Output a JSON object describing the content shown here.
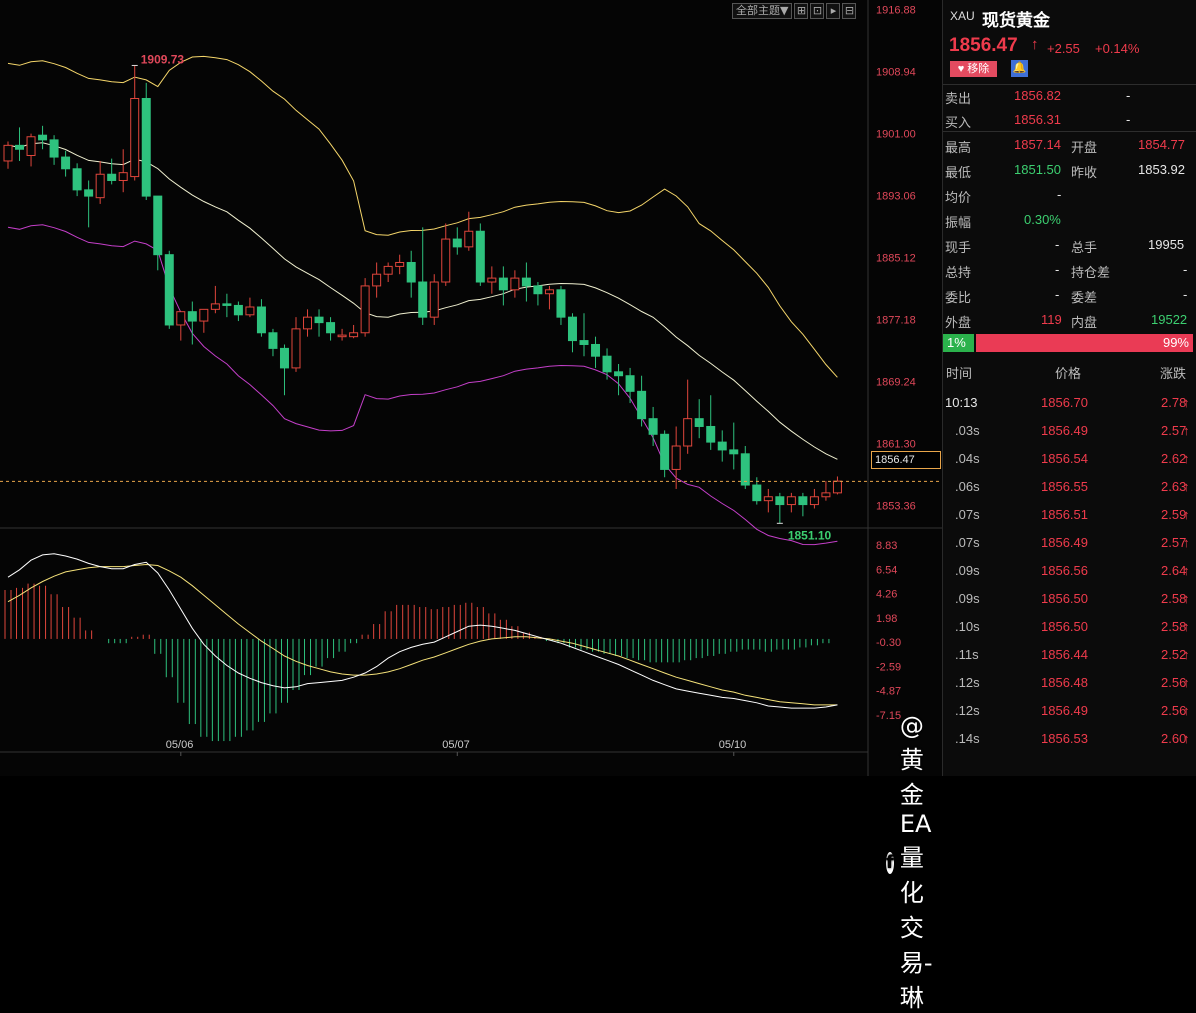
{
  "toolbar": {
    "theme_label": "全部主题▼",
    "icons": [
      "expand-icon",
      "indicator-icon",
      "play-icon",
      "settings-icon"
    ]
  },
  "colors": {
    "up": "#ef3b4c",
    "down": "#3ccf70",
    "bull_candle": "#e0463c",
    "bear_candle": "#2ec27e",
    "boll_mid": "#f0f0d0",
    "boll_upper": "#f5d66a",
    "boll_lower": "#c43fc9",
    "macd_dif": "#ffffff",
    "macd_dea": "#f5e27a"
  },
  "chart": {
    "price_axis": [
      "1916.88",
      "1908.94",
      "1901.00",
      "1893.06",
      "1885.12",
      "1877.18",
      "1869.24",
      "1861.30",
      "1853.36"
    ],
    "macd_axis": [
      "8.83",
      "6.54",
      "4.26",
      "1.98",
      "-0.30",
      "-2.59",
      "-4.87",
      "-7.15"
    ],
    "date_labels": [
      "05/06",
      "05/07",
      "05/10"
    ],
    "high_label": "1909.73",
    "low_label": "1851.10",
    "current_price_tag": "1856.47"
  },
  "chart_data": {
    "type": "candlestick",
    "ylim": [
      1850.5,
      1917.6
    ],
    "candles": [
      [
        1897.5,
        1900.0,
        1899.5,
        1896.5
      ],
      [
        1899.5,
        1901.8,
        1899.0,
        1897.5
      ],
      [
        1898.2,
        1901.0,
        1900.6,
        1896.8
      ],
      [
        1900.8,
        1902.0,
        1900.2,
        1899.0
      ],
      [
        1900.2,
        1900.8,
        1898.0,
        1897.0
      ],
      [
        1898.0,
        1898.8,
        1896.5,
        1895.5
      ],
      [
        1896.5,
        1897.2,
        1893.8,
        1893.0
      ],
      [
        1893.8,
        1895.0,
        1893.0,
        1889.0
      ],
      [
        1892.8,
        1897.5,
        1895.8,
        1892.0
      ],
      [
        1895.8,
        1897.8,
        1895.0,
        1894.5
      ],
      [
        1895.0,
        1899.0,
        1896.0,
        1893.5
      ],
      [
        1895.5,
        1909.7,
        1905.5,
        1895.0
      ],
      [
        1905.5,
        1907.5,
        1893.0,
        1892.5
      ],
      [
        1893.0,
        1893.0,
        1885.5,
        1883.5
      ],
      [
        1885.5,
        1886.0,
        1876.5,
        1876.0
      ],
      [
        1876.5,
        1877.0,
        1878.2,
        1874.5
      ],
      [
        1878.2,
        1879.5,
        1877.0,
        1874.0
      ],
      [
        1877.0,
        1878.5,
        1878.5,
        1875.5
      ],
      [
        1878.5,
        1881.5,
        1879.2,
        1878.0
      ],
      [
        1879.2,
        1880.5,
        1879.0,
        1877.5
      ],
      [
        1879.0,
        1879.5,
        1877.8,
        1877.0
      ],
      [
        1877.8,
        1880.0,
        1878.8,
        1877.5
      ],
      [
        1878.8,
        1879.8,
        1875.5,
        1875.0
      ],
      [
        1875.5,
        1876.0,
        1873.5,
        1872.5
      ],
      [
        1873.5,
        1874.0,
        1871.0,
        1867.5
      ],
      [
        1871.0,
        1877.5,
        1876.0,
        1870.5
      ],
      [
        1876.0,
        1878.5,
        1877.5,
        1875.0
      ],
      [
        1877.5,
        1878.5,
        1876.8,
        1875.0
      ],
      [
        1876.8,
        1877.5,
        1875.5,
        1874.5
      ],
      [
        1875.0,
        1876.0,
        1875.2,
        1874.5
      ],
      [
        1875.0,
        1876.5,
        1875.5,
        1874.8
      ],
      [
        1875.5,
        1882.5,
        1881.5,
        1875.0
      ],
      [
        1881.5,
        1884.5,
        1883.0,
        1880.0
      ],
      [
        1883.0,
        1884.5,
        1884.0,
        1882.0
      ],
      [
        1884.0,
        1885.5,
        1884.5,
        1883.0
      ],
      [
        1884.5,
        1886.0,
        1882.0,
        1880.0
      ],
      [
        1882.0,
        1889.0,
        1877.5,
        1876.5
      ],
      [
        1877.5,
        1883.0,
        1882.0,
        1876.5
      ],
      [
        1882.0,
        1889.5,
        1887.5,
        1881.5
      ],
      [
        1887.5,
        1889.0,
        1886.5,
        1885.5
      ],
      [
        1886.5,
        1891.0,
        1888.5,
        1886.0
      ],
      [
        1888.5,
        1889.5,
        1882.0,
        1881.5
      ],
      [
        1882.0,
        1884.0,
        1882.5,
        1880.5
      ],
      [
        1882.5,
        1884.0,
        1881.0,
        1879.0
      ],
      [
        1881.0,
        1883.5,
        1882.5,
        1880.0
      ],
      [
        1882.5,
        1884.5,
        1881.5,
        1879.5
      ],
      [
        1881.5,
        1882.0,
        1880.5,
        1879.0
      ],
      [
        1880.5,
        1881.5,
        1881.0,
        1878.5
      ],
      [
        1881.0,
        1881.5,
        1877.5,
        1876.5
      ],
      [
        1877.5,
        1878.0,
        1874.5,
        1873.0
      ],
      [
        1874.5,
        1878.0,
        1874.0,
        1872.5
      ],
      [
        1874.0,
        1875.0,
        1872.5,
        1871.0
      ],
      [
        1872.5,
        1873.5,
        1870.5,
        1869.5
      ],
      [
        1870.5,
        1871.5,
        1870.0,
        1867.5
      ],
      [
        1870.0,
        1871.0,
        1868.0,
        1866.5
      ],
      [
        1868.0,
        1870.0,
        1864.5,
        1863.5
      ],
      [
        1864.5,
        1866.0,
        1862.5,
        1861.0
      ],
      [
        1862.5,
        1863.0,
        1858.0,
        1857.0
      ],
      [
        1858.0,
        1863.5,
        1861.0,
        1855.5
      ],
      [
        1861.0,
        1869.5,
        1864.5,
        1860.0
      ],
      [
        1864.5,
        1867.0,
        1863.5,
        1862.0
      ],
      [
        1863.5,
        1867.5,
        1861.5,
        1860.5
      ],
      [
        1861.5,
        1863.0,
        1860.5,
        1859.0
      ],
      [
        1860.5,
        1864.0,
        1860.0,
        1858.0
      ],
      [
        1860.0,
        1861.0,
        1856.0,
        1855.5
      ],
      [
        1856.0,
        1857.0,
        1854.0,
        1853.5
      ],
      [
        1854.0,
        1855.5,
        1854.5,
        1852.5
      ],
      [
        1854.5,
        1855.0,
        1853.5,
        1851.1
      ],
      [
        1853.5,
        1855.0,
        1854.5,
        1852.5
      ],
      [
        1854.5,
        1855.0,
        1853.5,
        1852.0
      ],
      [
        1853.5,
        1855.5,
        1854.5,
        1853.0
      ],
      [
        1854.5,
        1856.5,
        1855.0,
        1854.0
      ],
      [
        1855.0,
        1857.1,
        1856.5,
        1854.8
      ]
    ],
    "macd": {
      "dif": [
        5.8,
        6.5,
        7.4,
        7.9,
        8.0,
        7.8,
        7.5,
        7.1,
        6.8,
        6.6,
        6.6,
        7.0,
        7.2,
        6.2,
        4.6,
        2.8,
        1.0,
        -0.5,
        -1.6,
        -2.5,
        -3.2,
        -3.7,
        -4.1,
        -4.4,
        -4.6,
        -4.5,
        -4.2,
        -4.1,
        -4.0,
        -3.9,
        -3.6,
        -3.2,
        -2.6,
        -1.8,
        -1.2,
        -0.8,
        -0.5,
        -0.3,
        0.2,
        0.7,
        1.2,
        1.3,
        1.2,
        1.0,
        0.8,
        0.5,
        0.2,
        -0.1,
        -0.4,
        -0.8,
        -1.2,
        -1.6,
        -2.0,
        -2.4,
        -2.9,
        -3.4,
        -3.9,
        -4.3,
        -4.7,
        -4.9,
        -5.1,
        -5.3,
        -5.5,
        -5.6,
        -5.8,
        -6.0,
        -6.3,
        -6.4,
        -6.5,
        -6.5,
        -6.5,
        -6.4,
        -6.2
      ],
      "dea": [
        3.5,
        4.1,
        4.8,
        5.4,
        5.9,
        6.3,
        6.5,
        6.7,
        6.8,
        6.8,
        6.8,
        6.9,
        7.0,
        6.9,
        6.4,
        5.8,
        5.0,
        4.1,
        3.2,
        2.3,
        1.4,
        0.6,
        -0.2,
        -0.9,
        -1.6,
        -2.1,
        -2.5,
        -2.8,
        -3.1,
        -3.3,
        -3.4,
        -3.4,
        -3.3,
        -3.1,
        -2.8,
        -2.4,
        -2.0,
        -1.7,
        -1.3,
        -0.9,
        -0.5,
        -0.2,
        0.0,
        0.1,
        0.2,
        0.2,
        0.1,
        0.0,
        -0.2,
        -0.4,
        -0.7,
        -1.0,
        -1.3,
        -1.6,
        -2.0,
        -2.4,
        -2.8,
        -3.2,
        -3.6,
        -3.9,
        -4.2,
        -4.5,
        -4.8,
        -5.0,
        -5.3,
        -5.5,
        -5.7,
        -5.9,
        -6.0,
        -6.1,
        -6.2,
        -6.2,
        -6.2
      ]
    }
  },
  "quote": {
    "code": "XAU",
    "name": "现货黄金",
    "price": "1856.47",
    "arrow": "↑",
    "change": "+2.55",
    "pct": "+0.14%",
    "remove_label": "♥ 移除",
    "bell_icon": "bell-icon",
    "sell_label": "卖出",
    "sell": "1856.82",
    "sell_vol": "-",
    "buy_label": "买入",
    "buy": "1856.31",
    "buy_vol": "-",
    "high_label": "最高",
    "high": "1857.14",
    "open_label": "开盘",
    "open": "1854.77",
    "low_label": "最低",
    "low": "1851.50",
    "prev_label": "昨收",
    "prev": "1853.92",
    "avg_label": "均价",
    "avg": "-",
    "amp_label": "振幅",
    "amp": "0.30%",
    "cur_hand_label": "现手",
    "cur_hand": "-",
    "total_hand_label": "总手",
    "total_hand": "19955",
    "total_hold_label": "总持",
    "total_hold": "-",
    "hold_diff_label": "持仓差",
    "hold_diff": "-",
    "bid_ratio_label": "委比",
    "bid_ratio": "-",
    "bid_diff_label": "委差",
    "bid_diff": "-",
    "outer_label": "外盘",
    "outer": "119",
    "inner_label": "内盘",
    "inner": "19522",
    "ratio_buy": "1%",
    "ratio_sell": "99%"
  },
  "ticks": {
    "headers": [
      "时间",
      "价格",
      "涨跌"
    ],
    "rows": [
      {
        "time": "10:13",
        "price": "1856.70",
        "change": "2.78"
      },
      {
        "time": ".03s",
        "price": "1856.49",
        "change": "2.57"
      },
      {
        "time": ".04s",
        "price": "1856.54",
        "change": "2.62"
      },
      {
        "time": ".06s",
        "price": "1856.55",
        "change": "2.63"
      },
      {
        "time": ".07s",
        "price": "1856.51",
        "change": "2.59"
      },
      {
        "time": ".07s",
        "price": "1856.49",
        "change": "2.57"
      },
      {
        "time": ".09s",
        "price": "1856.56",
        "change": "2.64"
      },
      {
        "time": ".09s",
        "price": "1856.50",
        "change": "2.58"
      },
      {
        "time": ".10s",
        "price": "1856.50",
        "change": "2.58"
      },
      {
        "time": ".11s",
        "price": "1856.44",
        "change": "2.52"
      },
      {
        "time": ".12s",
        "price": "1856.48",
        "change": "2.56"
      },
      {
        "time": ".12s",
        "price": "1856.49",
        "change": "2.56"
      },
      {
        "time": ".14s",
        "price": "1856.53",
        "change": "2.60"
      }
    ]
  },
  "watermark": {
    "text": "@黄金EA量化交易-琳",
    "icon": "facebook-icon"
  }
}
